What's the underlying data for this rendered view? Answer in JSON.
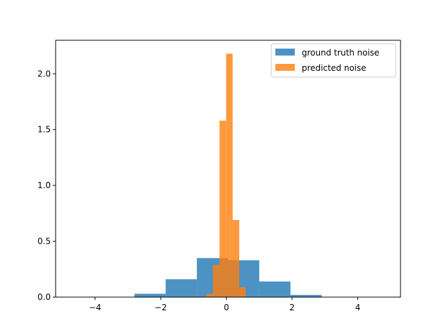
{
  "chart_data": {
    "type": "bar",
    "title": "",
    "xlabel": "",
    "ylabel": "",
    "xlim": [
      -5.2,
      5.3
    ],
    "ylim": [
      0,
      2.3
    ],
    "xticks": [
      {
        "value": -4,
        "label": "−4"
      },
      {
        "value": -2,
        "label": "−2"
      },
      {
        "value": 0,
        "label": "0"
      },
      {
        "value": 2,
        "label": "2"
      },
      {
        "value": 4,
        "label": "4"
      }
    ],
    "yticks": [
      {
        "value": 0,
        "label": "0.0"
      },
      {
        "value": 0.5,
        "label": "0.5"
      },
      {
        "value": 1,
        "label": "1.0"
      },
      {
        "value": 1.5,
        "label": "1.5"
      },
      {
        "value": 2,
        "label": "2.0"
      }
    ],
    "grid": false,
    "legend_position": "top-right",
    "series": [
      {
        "name": "ground truth noise",
        "color": "#1f77b4",
        "opacity": 0.8,
        "bins": [
          {
            "x0": -4.7,
            "x1": -3.75,
            "y": 0.0
          },
          {
            "x0": -3.75,
            "x1": -2.8,
            "y": 0.0
          },
          {
            "x0": -2.8,
            "x1": -1.85,
            "y": 0.03
          },
          {
            "x0": -1.85,
            "x1": -0.9,
            "y": 0.16
          },
          {
            "x0": -0.9,
            "x1": 0.05,
            "y": 0.35
          },
          {
            "x0": 0.05,
            "x1": 1.0,
            "y": 0.33
          },
          {
            "x0": 1.0,
            "x1": 1.95,
            "y": 0.14
          },
          {
            "x0": 1.95,
            "x1": 2.9,
            "y": 0.02
          },
          {
            "x0": 2.9,
            "x1": 3.85,
            "y": 0.0
          },
          {
            "x0": 3.85,
            "x1": 4.8,
            "y": 0.0
          }
        ]
      },
      {
        "name": "predicted noise",
        "color": "#ff7f0e",
        "opacity": 0.8,
        "bins": [
          {
            "x0": -0.61,
            "x1": -0.41,
            "y": 0.03
          },
          {
            "x0": -0.41,
            "x1": -0.21,
            "y": 0.29
          },
          {
            "x0": -0.21,
            "x1": -0.01,
            "y": 1.58
          },
          {
            "x0": -0.01,
            "x1": 0.19,
            "y": 2.18
          },
          {
            "x0": 0.19,
            "x1": 0.39,
            "y": 0.69
          },
          {
            "x0": 0.39,
            "x1": 0.59,
            "y": 0.09
          }
        ]
      }
    ]
  }
}
